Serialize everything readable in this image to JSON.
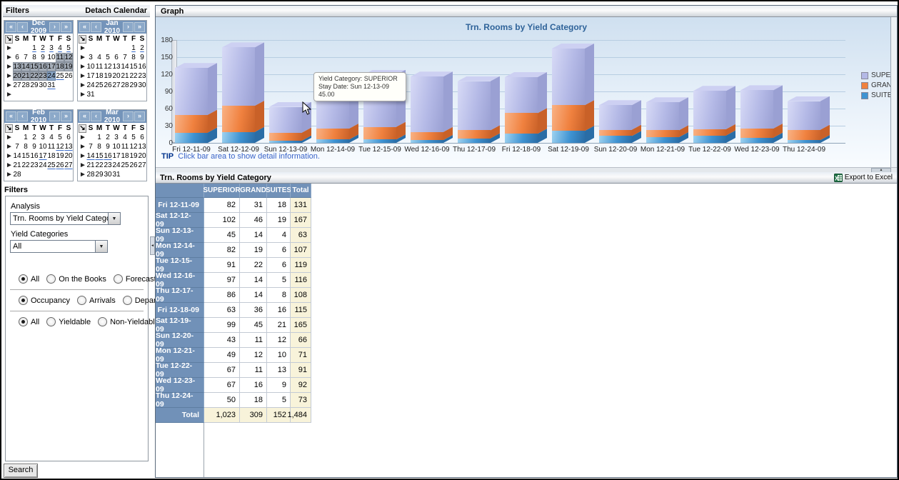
{
  "icons": {
    "week_arrow": "►",
    "select_all": "↘",
    "nav_first": "«",
    "nav_prev": "‹",
    "nav_next": "›",
    "nav_last": "»",
    "dropdown": "▼",
    "splitter_up": "▲",
    "splitter_left": "◄"
  },
  "sidebar": {
    "header": {
      "title": "Filters",
      "detach_label": "Detach Calendar"
    },
    "day_headers": [
      "S",
      "M",
      "T",
      "W",
      "T",
      "F",
      "S"
    ],
    "calendars": [
      {
        "title": "Dec 2009",
        "weeks": [
          [
            "",
            "",
            "1u",
            "2u",
            "3u",
            "4u",
            "5u"
          ],
          [
            "6",
            "7",
            "8",
            "9",
            "10",
            "11s",
            "12s"
          ],
          [
            "13s",
            "14s",
            "15s",
            "16s",
            "17s",
            "18s",
            "19s"
          ],
          [
            "20s",
            "21s",
            "22s",
            "23s",
            "24b",
            "25u",
            "26"
          ],
          [
            "27",
            "28",
            "29",
            "30",
            "31u",
            "",
            ""
          ],
          [
            "",
            "",
            "",
            "",
            "",
            "",
            ""
          ]
        ]
      },
      {
        "title": "Jan 2010",
        "weeks": [
          [
            "",
            "",
            "",
            "",
            "",
            "1u",
            "2u"
          ],
          [
            "3",
            "4",
            "5",
            "6",
            "7",
            "8",
            "9"
          ],
          [
            "10",
            "11",
            "12",
            "13",
            "14",
            "15",
            "16"
          ],
          [
            "17",
            "18",
            "19",
            "20",
            "21",
            "22",
            "23"
          ],
          [
            "24",
            "25",
            "26",
            "27",
            "28",
            "29",
            "30"
          ],
          [
            "31",
            "",
            "",
            "",
            "",
            "",
            ""
          ]
        ]
      },
      {
        "title": "Feb 2010",
        "weeks": [
          [
            "",
            "1",
            "2",
            "3",
            "4",
            "5",
            "6"
          ],
          [
            "7",
            "8",
            "9",
            "10",
            "11",
            "12u",
            "13u"
          ],
          [
            "14",
            "15",
            "16",
            "17u",
            "18",
            "19",
            "20"
          ],
          [
            "21",
            "22",
            "23",
            "24",
            "25u",
            "26u",
            "27u"
          ],
          [
            "28",
            "",
            "",
            "",
            "",
            "",
            ""
          ]
        ]
      },
      {
        "title": "Mar 2010",
        "weeks": [
          [
            "",
            "1",
            "2",
            "3",
            "4",
            "5",
            "6"
          ],
          [
            "7",
            "8",
            "9",
            "10",
            "11",
            "12",
            "13"
          ],
          [
            "14u",
            "15u",
            "16u",
            "17",
            "18",
            "19",
            "20"
          ],
          [
            "21",
            "22",
            "23",
            "24",
            "25",
            "26",
            "27"
          ],
          [
            "28",
            "29",
            "30",
            "31",
            "",
            "",
            ""
          ]
        ]
      }
    ],
    "filters": {
      "section_title": "Filters",
      "analysis_label": "Analysis",
      "analysis_value": "Trn. Rooms by Yield Category",
      "yield_label": "Yield Categories",
      "yield_value": "All",
      "groups": [
        {
          "options": [
            "All",
            "On the Books",
            "Forecast"
          ],
          "selected": 0
        },
        {
          "options": [
            "Occupancy",
            "Arrivals",
            "Departures"
          ],
          "selected": 0
        },
        {
          "options": [
            "All",
            "Yieldable",
            "Non-Yieldable"
          ],
          "selected": 0
        }
      ],
      "search_label": "Search"
    }
  },
  "graph_panel": {
    "header": "Graph",
    "tip_label": "TIP",
    "tip_text": "Click bar area to show detail information.",
    "tooltip": {
      "lines": [
        "Yield Category: SUPERIOR",
        "Stay Date: Sun 12-13-09",
        "45.00"
      ]
    }
  },
  "chart_data": {
    "type": "bar",
    "stacked": true,
    "title": "Trn. Rooms by Yield Category",
    "title_color": "#2f6399",
    "categories": [
      "Fri 12-11-09",
      "Sat 12-12-09",
      "Sun 12-13-09",
      "Mon 12-14-09",
      "Tue 12-15-09",
      "Wed 12-16-09",
      "Thu 12-17-09",
      "Fri 12-18-09",
      "Sat 12-19-09",
      "Sun 12-20-09",
      "Mon 12-21-09",
      "Tue 12-22-09",
      "Wed 12-23-09",
      "Thu 12-24-09"
    ],
    "series": [
      {
        "name": "SUITES",
        "color": "#3f93d2",
        "light": "#9ed2f0",
        "dark": "#2a6da6",
        "top": "#b4def4",
        "values": [
          18,
          19,
          4,
          6,
          6,
          5,
          8,
          16,
          21,
          12,
          10,
          13,
          9,
          5
        ]
      },
      {
        "name": "GRAND",
        "color": "#f0813f",
        "light": "#f9b285",
        "dark": "#c96128",
        "top": "#f9c09a",
        "values": [
          31,
          46,
          14,
          19,
          22,
          14,
          14,
          36,
          45,
          11,
          12,
          11,
          16,
          18
        ]
      },
      {
        "name": "SUPERIOR",
        "color": "#b4b9e6",
        "light": "#d7daf6",
        "dark": "#9aa0d3",
        "top": "#cdd0f2",
        "values": [
          82,
          102,
          45,
          82,
          91,
          97,
          86,
          63,
          99,
          43,
          49,
          67,
          67,
          50
        ]
      }
    ],
    "legend": [
      "SUPERIOR",
      "GRAND",
      "SUITES"
    ],
    "legend_position": "right",
    "ylim": [
      0,
      180
    ],
    "yticks": [
      0,
      30,
      60,
      90,
      120,
      150,
      180
    ],
    "grid": true
  },
  "table_panel": {
    "header": "Trn. Rooms by Yield Category",
    "export_label": "Export to Excel",
    "columns": [
      "SUPERIOR",
      "GRAND",
      "SUITES",
      "Total"
    ],
    "rows": [
      [
        "Fri 12-11-09",
        "82",
        "31",
        "18",
        "131"
      ],
      [
        "Sat 12-12-09",
        "102",
        "46",
        "19",
        "167"
      ],
      [
        "Sun 12-13-09",
        "45",
        "14",
        "4",
        "63"
      ],
      [
        "Mon 12-14-09",
        "82",
        "19",
        "6",
        "107"
      ],
      [
        "Tue 12-15-09",
        "91",
        "22",
        "6",
        "119"
      ],
      [
        "Wed 12-16-09",
        "97",
        "14",
        "5",
        "116"
      ],
      [
        "Thu 12-17-09",
        "86",
        "14",
        "8",
        "108"
      ],
      [
        "Fri 12-18-09",
        "63",
        "36",
        "16",
        "115"
      ],
      [
        "Sat 12-19-09",
        "99",
        "45",
        "21",
        "165"
      ],
      [
        "Sun 12-20-09",
        "43",
        "11",
        "12",
        "66"
      ],
      [
        "Mon 12-21-09",
        "49",
        "12",
        "10",
        "71"
      ],
      [
        "Tue 12-22-09",
        "67",
        "11",
        "13",
        "91"
      ],
      [
        "Wed 12-23-09",
        "67",
        "16",
        "9",
        "92"
      ],
      [
        "Thu 12-24-09",
        "50",
        "18",
        "5",
        "73"
      ]
    ],
    "total_row": [
      "Total",
      "1,023",
      "309",
      "152",
      "1,484"
    ]
  }
}
